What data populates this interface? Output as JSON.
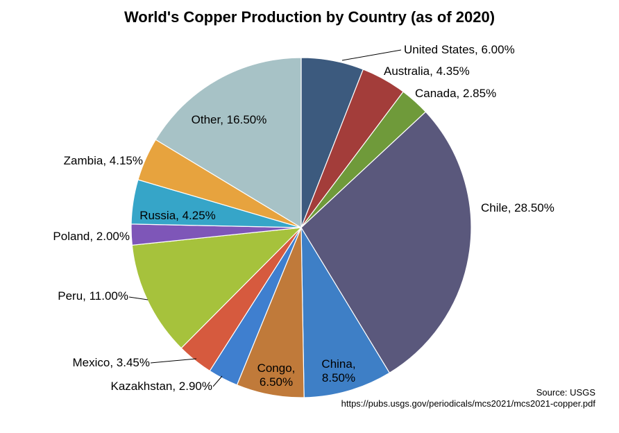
{
  "chart_data": {
    "type": "pie",
    "title": "World's Copper Production by Country (as of 2020)",
    "slices": [
      {
        "label": "United States",
        "value": 6.0,
        "display": "United States, 6.00%",
        "color": "#3c5a7e"
      },
      {
        "label": "Australia",
        "value": 4.35,
        "display": "Australia, 4.35%",
        "color": "#a33d3a"
      },
      {
        "label": "Canada",
        "value": 2.85,
        "display": "Canada, 2.85%",
        "color": "#6f9a3a"
      },
      {
        "label": "Chile",
        "value": 28.5,
        "display": "Chile, 28.50%",
        "color": "#5a587c"
      },
      {
        "label": "China",
        "value": 8.5,
        "display": [
          "China,",
          "8.50%"
        ],
        "color": "#3e7fc6"
      },
      {
        "label": "Congo",
        "value": 6.5,
        "display": [
          "Congo,",
          "6.50%"
        ],
        "color": "#c07a3a"
      },
      {
        "label": "Kazakhstan",
        "value": 2.9,
        "display": "Kazakhstan, 2.90%",
        "color": "#3f7fcf"
      },
      {
        "label": "Mexico",
        "value": 3.45,
        "display": "Mexico, 3.45%",
        "color": "#d65a3e"
      },
      {
        "label": "Peru",
        "value": 11.0,
        "display": "Peru, 11.00%",
        "color": "#a6c23c"
      },
      {
        "label": "Poland",
        "value": 2.0,
        "display": "Poland, 2.00%",
        "color": "#7e56b8"
      },
      {
        "label": "Russia",
        "value": 4.25,
        "display": "Russia, 4.25%",
        "color": "#36a5c8"
      },
      {
        "label": "Zambia",
        "value": 4.15,
        "display": "Zambia, 4.15%",
        "color": "#e7a33e"
      },
      {
        "label": "Other",
        "value": 16.5,
        "display": "Other, 16.50%",
        "color": "#a7c2c6"
      }
    ],
    "legend": "none"
  },
  "source": {
    "line1": "Source:  USGS",
    "line2": "https://pubs.usgs.gov/periodicals/mcs2021/mcs2021-copper.pdf"
  }
}
